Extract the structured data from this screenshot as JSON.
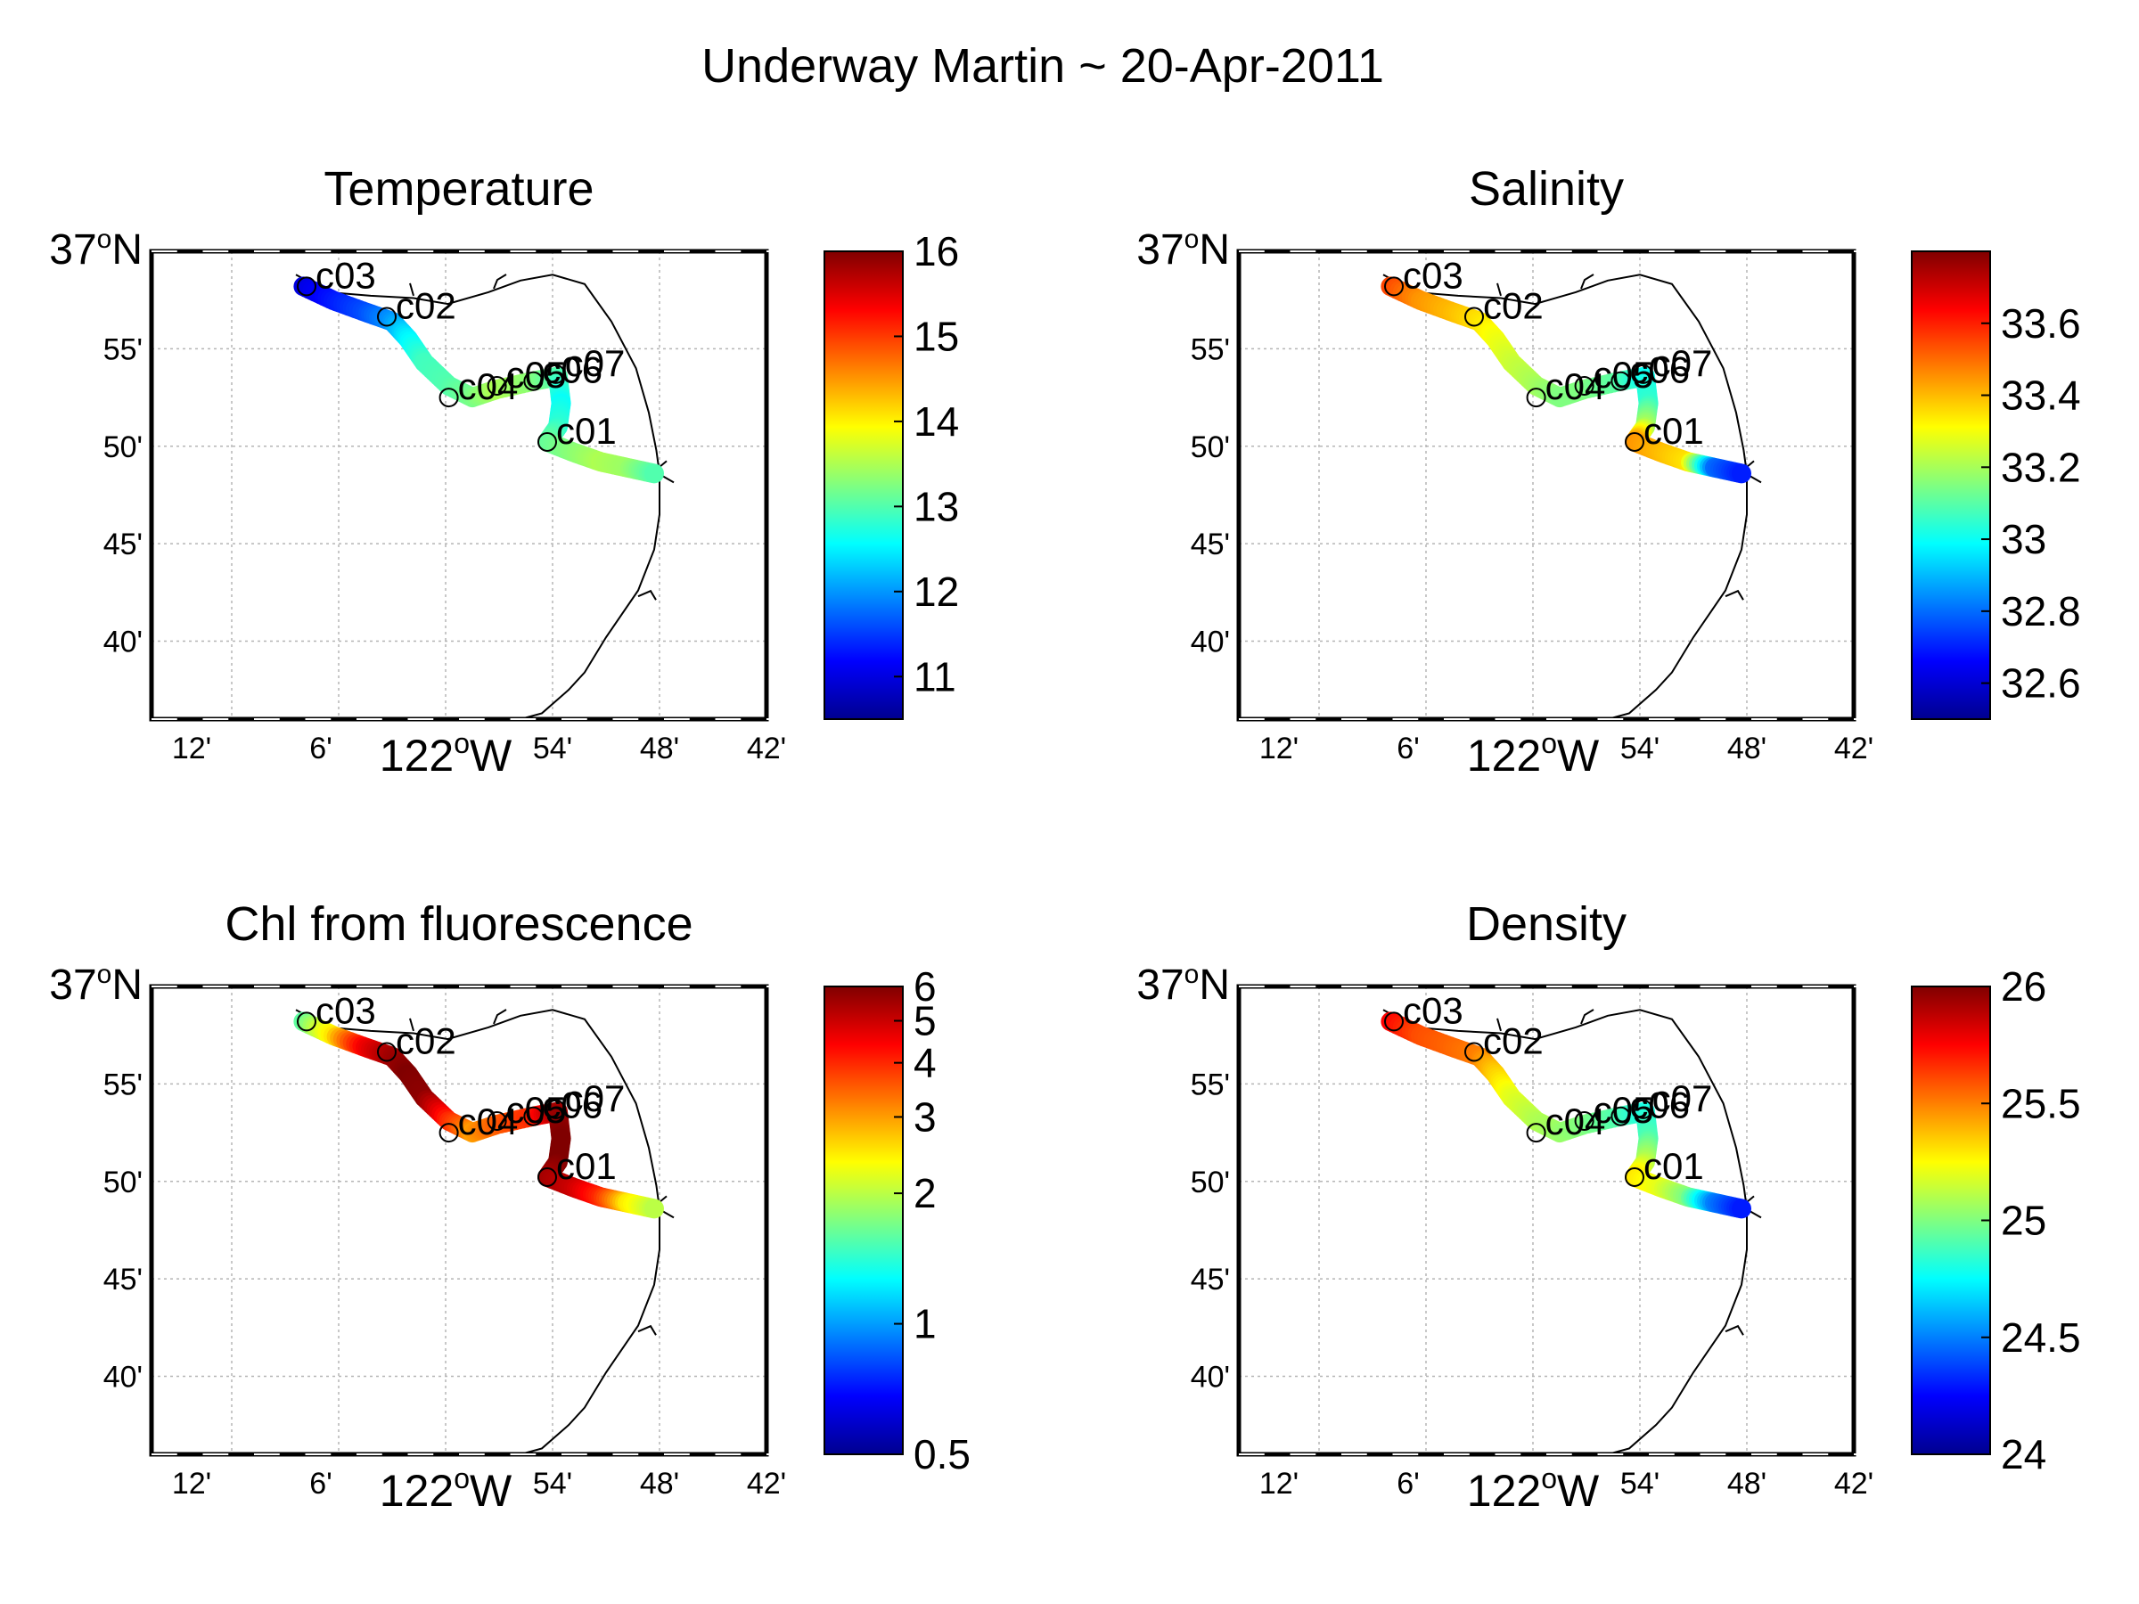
{
  "figure": {
    "title": "Underway Martin ~ 20-Apr-2011"
  },
  "axes": {
    "lon_tick_labels": [
      "12'",
      "6'",
      "122°W",
      "54'",
      "48'",
      "42'"
    ],
    "lat_tick_labels": [
      "37°N",
      "55'",
      "50'",
      "45'",
      "40'"
    ],
    "lon_range": [
      "-122.275",
      "-121.7"
    ],
    "lat_range": [
      "36.6",
      "37.0"
    ],
    "grid": true
  },
  "stations": [
    {
      "label": "c03",
      "lon": -122.13,
      "lat": 36.97
    },
    {
      "label": "c02",
      "lon": -122.055,
      "lat": 36.944
    },
    {
      "label": "c04",
      "lon": -121.997,
      "lat": 36.875
    },
    {
      "label": "c05",
      "lon": -121.952,
      "lat": 36.885
    },
    {
      "label": "c06",
      "lon": -121.918,
      "lat": 36.889
    },
    {
      "label": "c07",
      "lon": -121.897,
      "lat": 36.895
    },
    {
      "label": "c01",
      "lon": -121.905,
      "lat": 36.837
    }
  ],
  "panels": [
    {
      "id": "temperature",
      "title": "Temperature",
      "colorbar": {
        "ticks": [
          "11",
          "12",
          "13",
          "14",
          "15",
          "16"
        ],
        "min": 10.5,
        "max": 16.0,
        "scale": "linear"
      },
      "track_values": [
        11.0,
        11.3,
        11.6,
        12.0,
        12.5,
        12.9,
        13.0,
        13.2,
        13.5,
        13.3,
        13.0,
        12.6,
        12.8,
        13.1,
        13.3,
        13.5,
        13.4,
        13.0
      ]
    },
    {
      "id": "salinity",
      "title": "Salinity",
      "colorbar": {
        "ticks": [
          "32.6",
          "32.8",
          "33",
          "33.2",
          "33.4",
          "33.6"
        ],
        "min": 32.5,
        "max": 33.8,
        "scale": "linear"
      },
      "track_values": [
        33.55,
        33.45,
        33.4,
        33.35,
        33.3,
        33.25,
        33.2,
        33.15,
        33.15,
        33.1,
        33.0,
        33.05,
        33.2,
        33.45,
        33.4,
        33.35,
        32.8,
        32.7
      ]
    },
    {
      "id": "chl",
      "title": "Chl from fluorescence",
      "colorbar": {
        "ticks": [
          "0.5",
          "1",
          "2",
          "3",
          "4",
          "5",
          "6"
        ],
        "min": 0.5,
        "max": 6.0,
        "scale": "log"
      },
      "track_values": [
        1.6,
        2.5,
        4.5,
        5.5,
        6.0,
        5.8,
        4.0,
        3.0,
        3.5,
        4.0,
        5.5,
        6.0,
        6.0,
        5.5,
        5.0,
        4.0,
        2.5,
        2.0
      ]
    },
    {
      "id": "density",
      "title": "Density",
      "colorbar": {
        "ticks": [
          "24",
          "24.5",
          "25",
          "25.5",
          "26"
        ],
        "min": 24.0,
        "max": 26.0,
        "scale": "linear"
      },
      "track_values": [
        25.75,
        25.6,
        25.55,
        25.5,
        25.35,
        25.2,
        25.1,
        25.05,
        25.0,
        24.9,
        24.8,
        24.9,
        25.1,
        25.3,
        25.2,
        25.0,
        24.5,
        24.3
      ]
    }
  ],
  "track": {
    "lon": [
      -122.133,
      -122.105,
      -122.075,
      -122.05,
      -122.035,
      -122.02,
      -121.997,
      -121.975,
      -121.952,
      -121.918,
      -121.895,
      -121.892,
      -121.895,
      -121.905,
      -121.88,
      -121.855,
      -121.83,
      -121.805
    ],
    "lat": [
      36.97,
      36.958,
      36.948,
      36.94,
      36.925,
      36.905,
      36.885,
      36.875,
      36.882,
      36.889,
      36.893,
      36.87,
      36.85,
      36.837,
      36.828,
      36.82,
      36.815,
      36.81
    ]
  },
  "coast": {
    "lon": [
      -122.14,
      -122.11,
      -122.07,
      -122.03,
      -121.998,
      -121.96,
      -121.93,
      -121.9,
      -121.87,
      -121.845,
      -121.822,
      -121.81,
      -121.803,
      -121.8,
      -121.8,
      -121.805,
      -121.82,
      -121.85,
      -121.87,
      -121.885,
      -121.91,
      -121.93
    ],
    "lat": [
      36.98,
      36.965,
      36.962,
      36.96,
      36.955,
      36.965,
      36.975,
      36.98,
      36.972,
      36.94,
      36.9,
      36.862,
      36.83,
      36.81,
      36.775,
      36.745,
      36.71,
      36.67,
      36.64,
      36.625,
      36.605,
      36.6
    ]
  }
}
